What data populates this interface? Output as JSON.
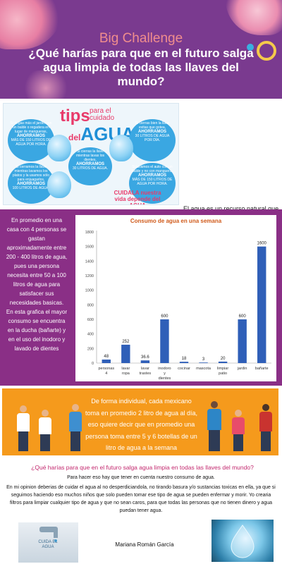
{
  "header": {
    "title": "Big Challenge",
    "question": "¿Qué harías para que en el futuro salga agua limpia de todas las llaves del mundo?"
  },
  "tips_card": {
    "title_main": "tips",
    "title_sub": "para el cuidado",
    "title_del": "del",
    "title_agua": "AGUA",
    "tips": [
      {
        "text": "Si riegas más el jardín con un balde o regadera en lugar de mangueras,",
        "save": "AHORRAMOS",
        "amount": "MÁS DE 150 LITROS DE AGUA POR HORA."
      },
      {
        "text": "Si cierras bien la llave evitas que gotea,",
        "save": "AHORRAMOS",
        "amount": "30 LITROS DE AGUA POR DÍA."
      },
      {
        "text": "Si cierras la llave mientras lavas los dientes,",
        "save": "AHORRAMOS",
        "amount": "30 LITROS DE AGUA."
      },
      {
        "text": "Si cerramos la llave mientras lavamos los platos y la usamos sólo para enjuagarlos,",
        "save": "AHORRAMOS",
        "amount": "100 LITROS DE AGUA."
      },
      {
        "text": "Si lavamos el auto con un balde y no con manguera,",
        "save": "AHORRAMOS",
        "amount": "MÁS DE 150 LITROS DE AGUA POR HORA."
      }
    ],
    "footer": "CUIDALA nuestra vida depende del AGUA"
  },
  "intro": {
    "text": "El agua es un recurso natural que todos los seres vivos necesitan para vivir. Es por eso que hoy hablare del cuidado del agua, de cuantos litros de agua se gastan aproximadamente en una casa y de cuantas botellas se consumen en una semana"
  },
  "side_text": "En promedio en una casa con 4 personas se gastan aproximadamente entre 200 - 400 litros de agua, pues una persona necesita entre 50 a 100 litros de agua para satisfacer sus necesidades basicas. En esta grafica el mayor consumo se encuentra en la ducha (bañarte) y en el uso del inodoro y lavado de dientes",
  "chart_data": {
    "type": "bar",
    "title": "Consumo de agua en una semana",
    "categories": [
      "personas 4",
      "lavar ropa",
      "lavar trastes",
      "inodoro y dientes",
      "cocinar",
      "mascota",
      "limpiar patio",
      "jardin",
      "bañarte"
    ],
    "values": [
      48,
      252,
      36.6,
      600,
      18,
      3,
      20,
      600,
      1600
    ],
    "value_labels": [
      "48",
      "252",
      "36.6",
      "600",
      "18",
      "3",
      "20",
      "600",
      "1600"
    ],
    "y_ticks": [
      "0",
      "200",
      "400",
      "600",
      "800",
      "1000",
      "1200",
      "1400",
      "1600",
      "1800"
    ],
    "ylim": [
      0,
      1800
    ],
    "xlabel": "",
    "ylabel": "",
    "bar_color": "#2f5fb8"
  },
  "orange": {
    "text": "De forma individual, cada mexicano toma en promedio 2 litro de agua al día, eso quiere decir que en promedio una persona toma entre 5 y 6 botellas de un litro de agua a la semana"
  },
  "bottom": {
    "question": "¿Qué harías para que en el futuro salga agua limpia en todas las llaves del mundo?",
    "paragraph1": "Para hacer eso hay que tener en cuenta nuestro consumo de agua.",
    "paragraph2": "En mi opinion deberias de cuidar el agua al no desperdiciandola, no tirando basura y/o sustancias toxicas en ella, ya que si seguimos haciendo eso muchos niños que solo pueden tomar ese tipo de agua se pueden enfermar y morir. Yo crearia filtros para limpiar cualquier tipo de agua y que no sean caros, para que todas las personas que no tienen dinero y agua puedan tener agua.",
    "author": "Mariana Román García",
    "left_image_label": "CUIDA EL AGUA"
  },
  "colors": {
    "header_bg": "#7a3a8f",
    "title": "#f08d8d",
    "data_band": "#8a2f86",
    "orange": "#f59a1c",
    "question_pink": "#c2276d"
  }
}
